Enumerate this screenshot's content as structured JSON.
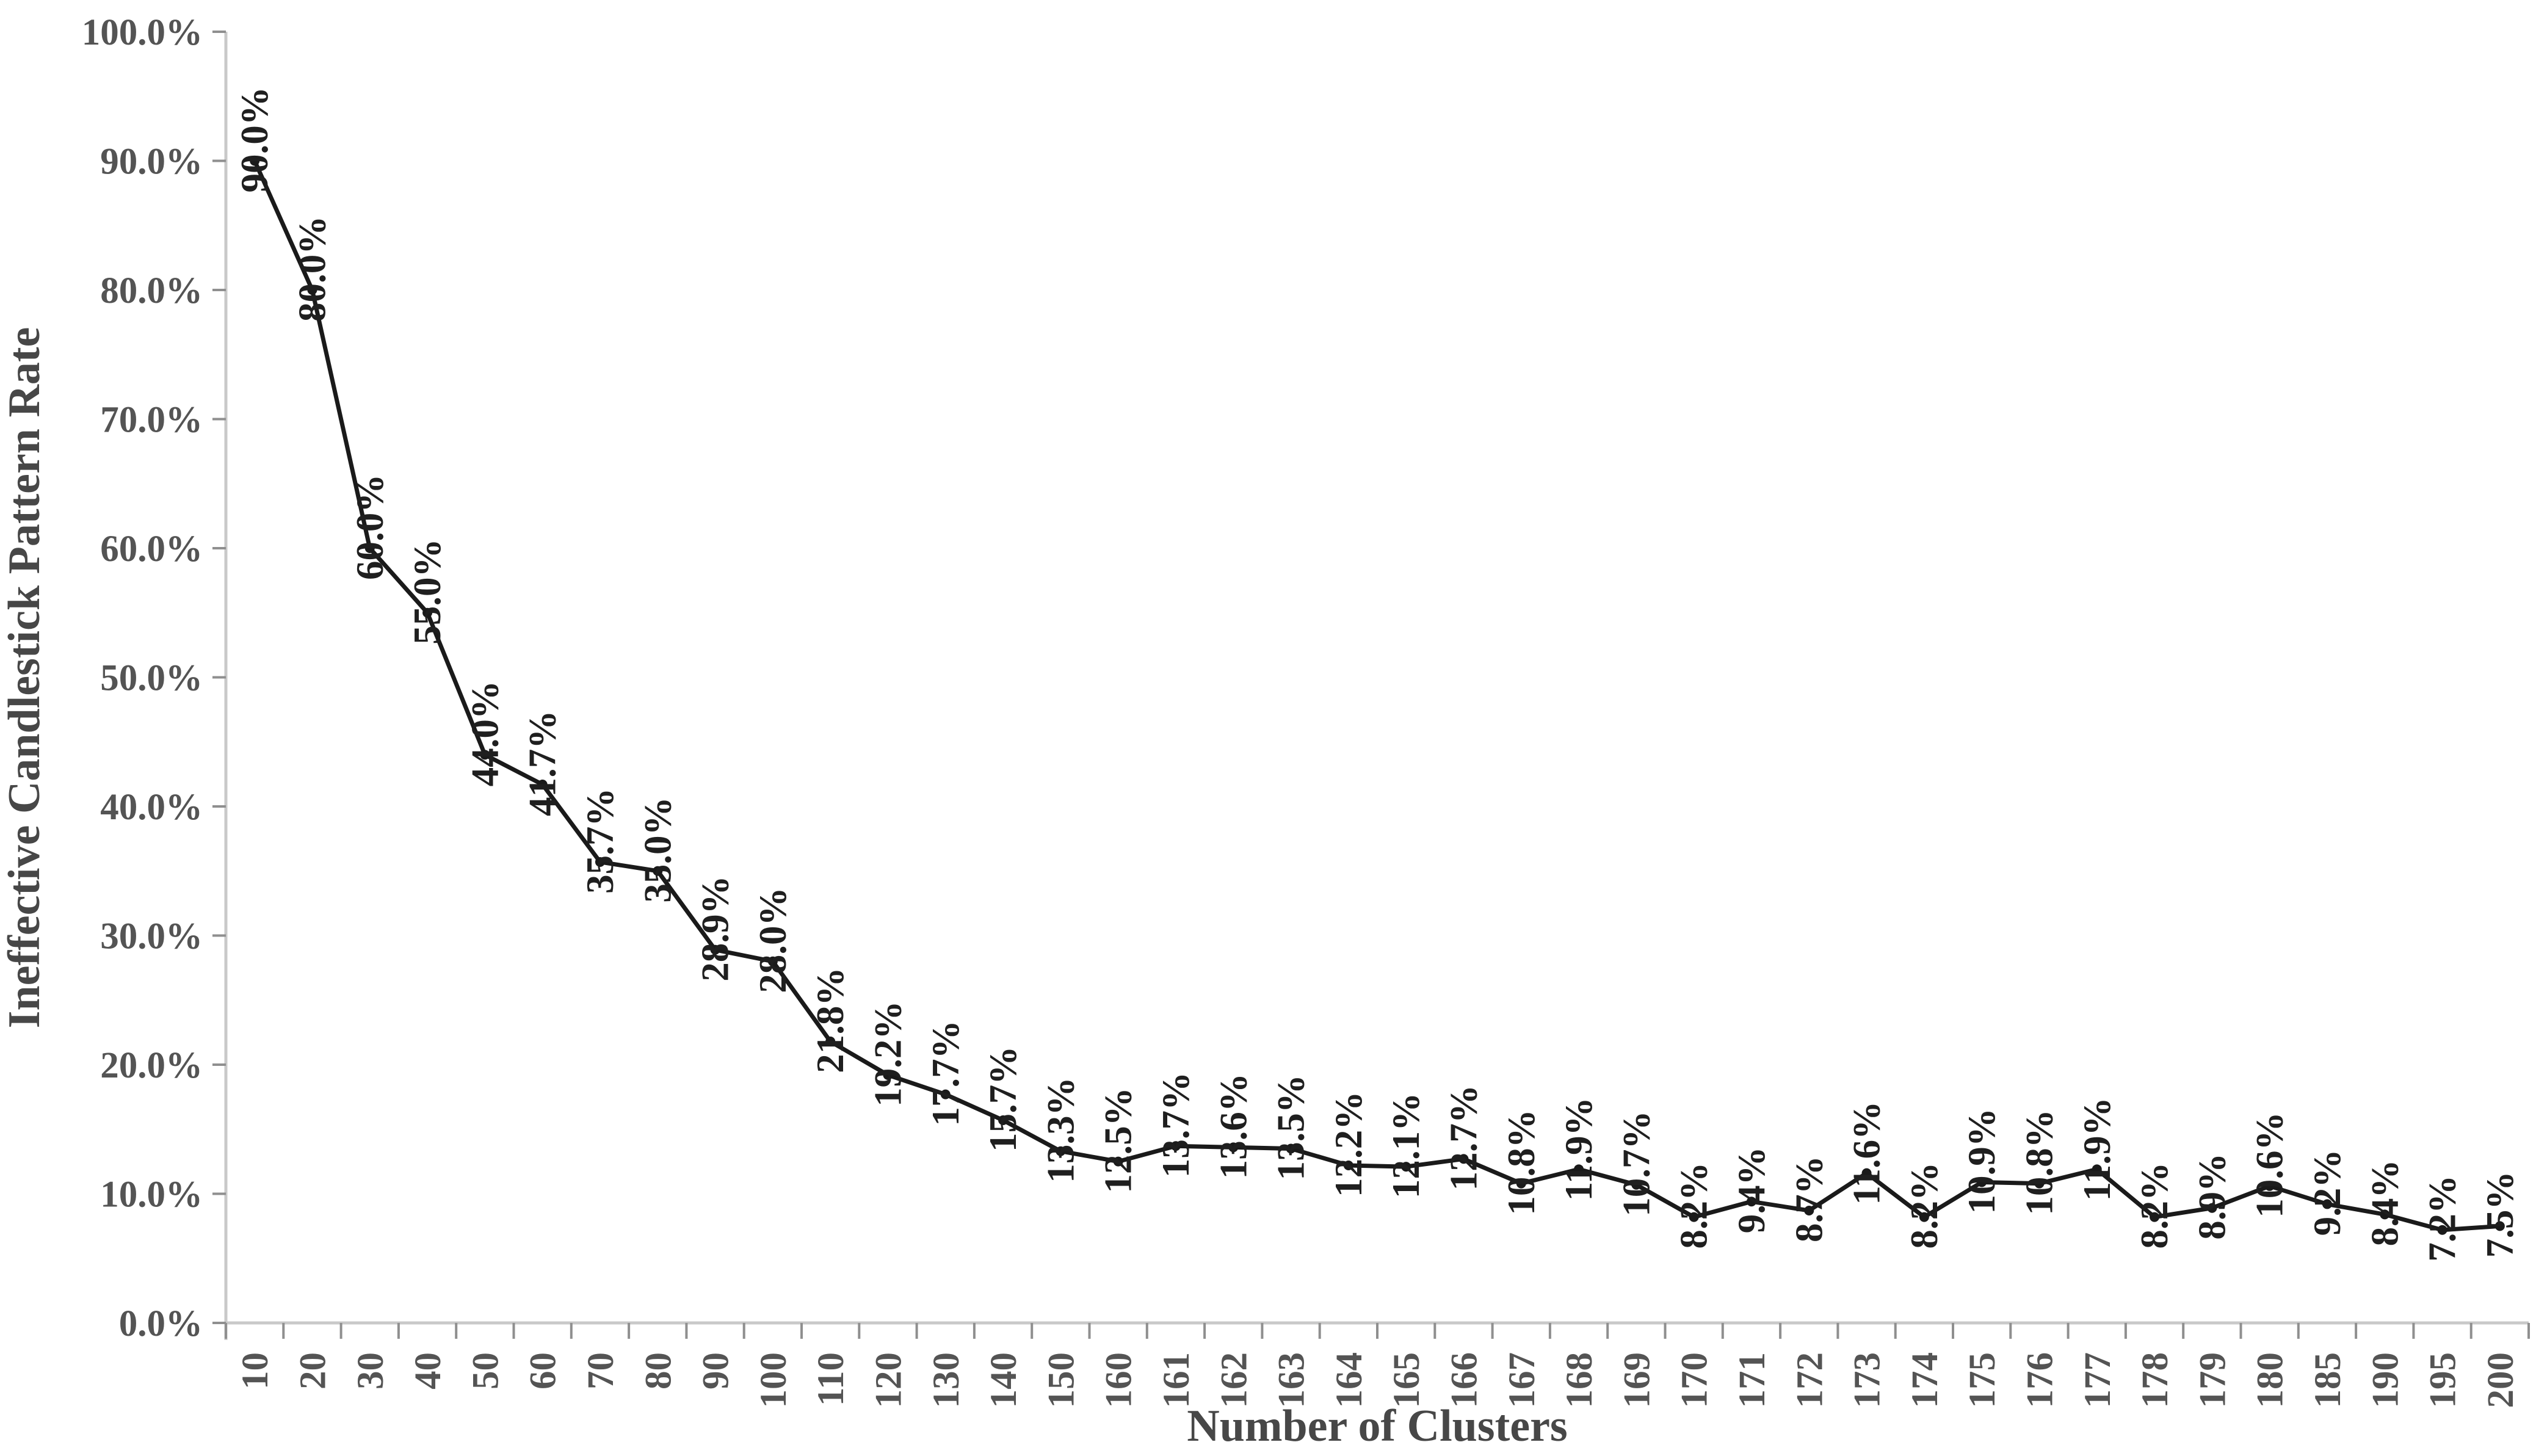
{
  "chart_data": {
    "type": "line",
    "xlabel": "Number of Clusters",
    "ylabel": "Ineffective Candlestick Pattern Rate",
    "categories": [
      "10",
      "20",
      "30",
      "40",
      "50",
      "60",
      "70",
      "80",
      "90",
      "100",
      "110",
      "120",
      "130",
      "140",
      "150",
      "160",
      "161",
      "162",
      "163",
      "164",
      "165",
      "166",
      "167",
      "168",
      "169",
      "170",
      "171",
      "172",
      "173",
      "174",
      "175",
      "176",
      "177",
      "178",
      "179",
      "180",
      "185",
      "190",
      "195",
      "200"
    ],
    "values": [
      90.0,
      80.0,
      60.0,
      55.0,
      44.0,
      41.7,
      35.7,
      35.0,
      28.9,
      28.0,
      21.8,
      19.2,
      17.7,
      15.7,
      13.3,
      12.5,
      13.7,
      13.6,
      13.5,
      12.2,
      12.1,
      12.7,
      10.8,
      11.9,
      10.7,
      8.2,
      9.4,
      8.7,
      11.6,
      8.2,
      10.9,
      10.8,
      11.9,
      8.2,
      8.9,
      10.6,
      9.2,
      8.4,
      7.2,
      7.5
    ],
    "point_labels": [
      "90.0%",
      "80.0%",
      "60.0%",
      "55.0%",
      "44.0%",
      "41.7%",
      "35.7%",
      "35.0%",
      "28.9%",
      "28.0%",
      "21.8%",
      "19.2%",
      "17.7%",
      "15.7%",
      "13.3%",
      "12.5%",
      "13.7%",
      "13.6%",
      "13.5%",
      "12.2%",
      "12.1%",
      "12.7%",
      "10.8%",
      "11.9%",
      "10.7%",
      "8.2%",
      "9.4%",
      "8.7%",
      "11.6%",
      "8.2%",
      "10.9%",
      "10.8%",
      "11.9%",
      "8.2%",
      "8.9%",
      "10.6%",
      "9.2%",
      "8.4%",
      "7.2%",
      "7.5%"
    ],
    "y_tick_labels": [
      "0.0%",
      "10.0%",
      "20.0%",
      "30.0%",
      "40.0%",
      "50.0%",
      "60.0%",
      "70.0%",
      "80.0%",
      "90.0%",
      "100.0%"
    ],
    "ylim": [
      0,
      100
    ],
    "y_tick_step": 10,
    "grid": false,
    "legend": "none",
    "marker": "circle",
    "label_rotation_deg": -90,
    "colors": {
      "series_line": "#1a1a1a",
      "marker": "#1a1a1a",
      "data_label": "#1f1f1f",
      "tick_label": "#545454",
      "axis_title": "#474747",
      "axis_line": "#c9c9c9",
      "tick_mark": "#8f8f8f",
      "background": "#ffffff"
    }
  }
}
